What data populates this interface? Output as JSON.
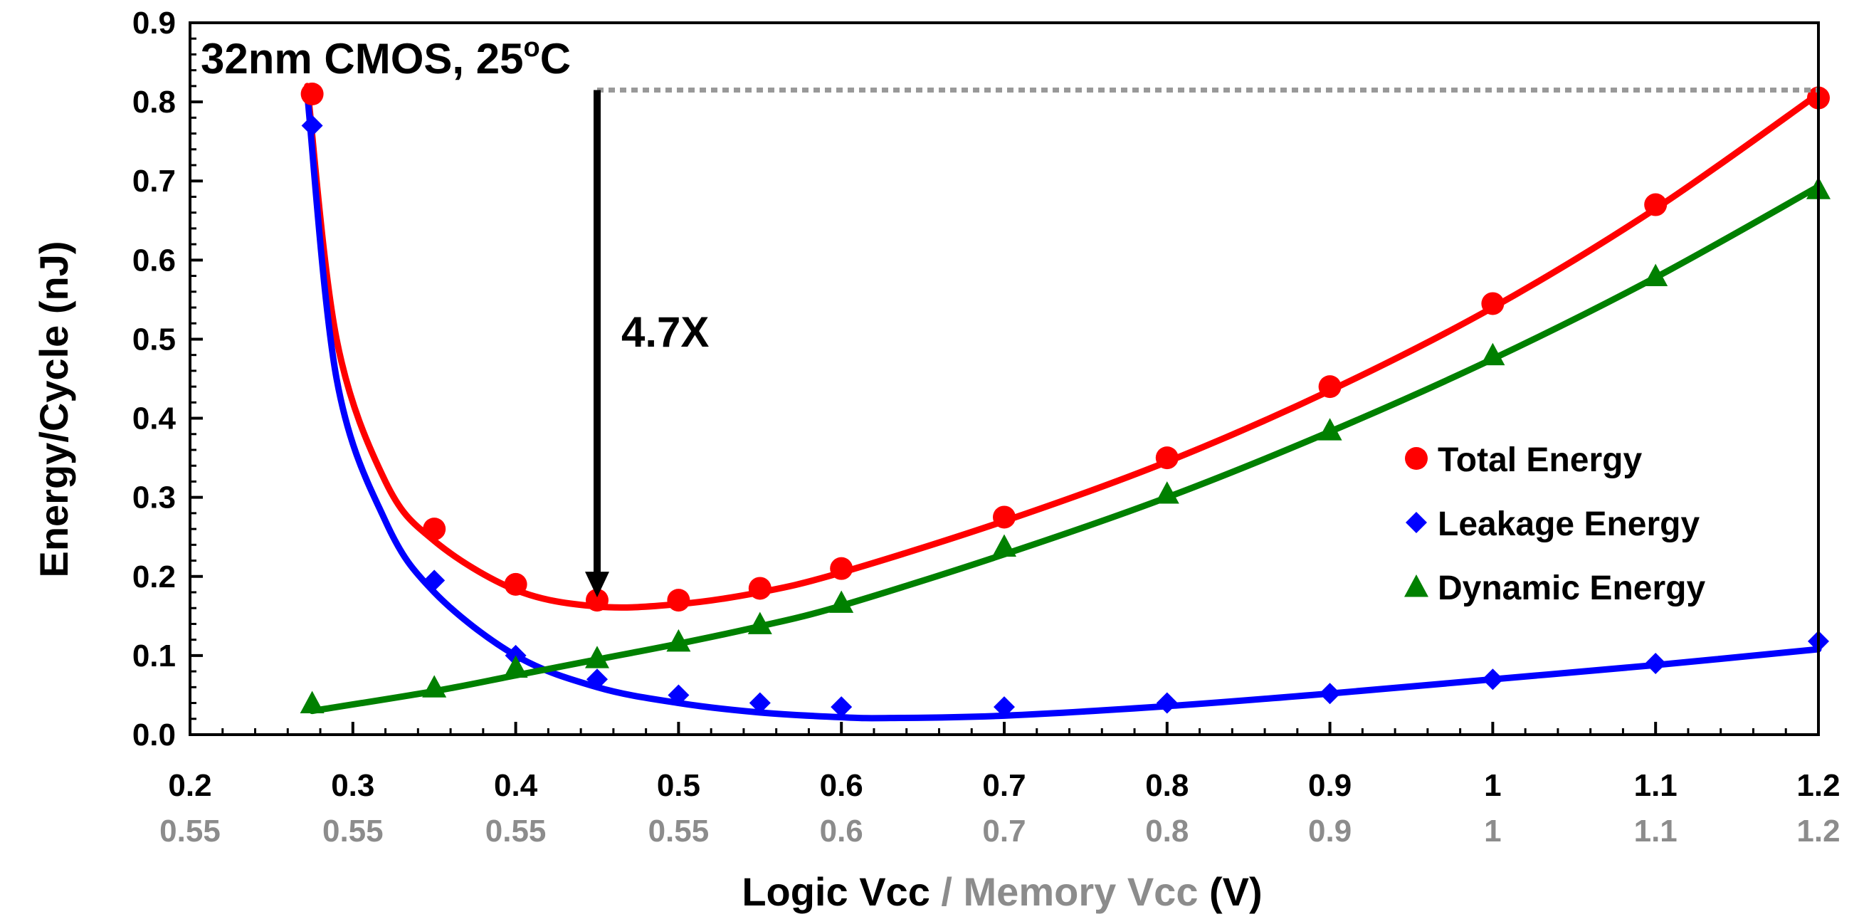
{
  "chart_data": {
    "type": "scatter",
    "title": "",
    "annotation": {
      "label_main": "32nm CMOS, 25",
      "label_sup": "o",
      "label_tail": "C",
      "ratio_label": "4.7X"
    },
    "ylabel": "Energy/Cycle (nJ)",
    "xlabel_primary": "Logic Vcc",
    "xlabel_separator": " / ",
    "xlabel_secondary": "Memory Vcc",
    "xlabel_unit": " (V)",
    "xlim": [
      0.2,
      1.2
    ],
    "ylim": [
      0.0,
      0.9
    ],
    "y_ticks": [
      "0.0",
      "0.1",
      "0.2",
      "0.3",
      "0.4",
      "0.5",
      "0.6",
      "0.7",
      "0.8",
      "0.9"
    ],
    "x_ticks_logic": [
      "0.2",
      "0.3",
      "0.4",
      "0.5",
      "0.6",
      "0.7",
      "0.8",
      "0.9",
      "1",
      "1.1",
      "1.2"
    ],
    "x_ticks_memory": [
      "0.55",
      "0.55",
      "0.55",
      "0.55",
      "0.6",
      "0.7",
      "0.8",
      "0.9",
      "1",
      "1.1",
      "1.2"
    ],
    "x_tick_values": [
      0.2,
      0.3,
      0.4,
      0.5,
      0.6,
      0.7,
      0.8,
      0.9,
      1.0,
      1.1,
      1.2
    ],
    "legend_position": "right",
    "series": [
      {
        "name": "Total Energy",
        "marker": "circle",
        "color": "#ff0000",
        "x": [
          0.275,
          0.35,
          0.4,
          0.45,
          0.5,
          0.55,
          0.6,
          0.7,
          0.8,
          0.9,
          1.0,
          1.1,
          1.2
        ],
        "y": [
          0.81,
          0.26,
          0.19,
          0.17,
          0.17,
          0.185,
          0.21,
          0.275,
          0.35,
          0.44,
          0.545,
          0.67,
          0.805
        ]
      },
      {
        "name": "Leakage Energy",
        "marker": "diamond",
        "color": "#0000ff",
        "x": [
          0.275,
          0.35,
          0.4,
          0.45,
          0.5,
          0.55,
          0.6,
          0.7,
          0.8,
          0.9,
          1.0,
          1.1,
          1.2
        ],
        "y": [
          0.77,
          0.195,
          0.1,
          0.07,
          0.05,
          0.04,
          0.035,
          0.035,
          0.04,
          0.052,
          0.07,
          0.09,
          0.118
        ]
      },
      {
        "name": "Dynamic Energy",
        "marker": "triangle",
        "color": "#008000",
        "x": [
          0.275,
          0.35,
          0.4,
          0.45,
          0.5,
          0.55,
          0.6,
          0.7,
          0.8,
          0.9,
          1.0,
          1.1,
          1.2
        ],
        "y": [
          0.04,
          0.06,
          0.085,
          0.097,
          0.118,
          0.14,
          0.167,
          0.238,
          0.305,
          0.385,
          0.48,
          0.58,
          0.69
        ]
      }
    ],
    "curves": [
      {
        "color": "#ff0000",
        "x": [
          0.272,
          0.29,
          0.32,
          0.35,
          0.4,
          0.45,
          0.5,
          0.55,
          0.6,
          0.7,
          0.8,
          0.9,
          1.0,
          1.1,
          1.2
        ],
        "y": [
          0.82,
          0.5,
          0.32,
          0.245,
          0.183,
          0.162,
          0.165,
          0.18,
          0.205,
          0.27,
          0.345,
          0.435,
          0.54,
          0.665,
          0.81
        ]
      },
      {
        "color": "#0000ff",
        "x": [
          0.272,
          0.29,
          0.32,
          0.35,
          0.4,
          0.45,
          0.5,
          0.55,
          0.6,
          0.63,
          0.7,
          0.8,
          0.9,
          1.0,
          1.1,
          1.2
        ],
        "y": [
          0.81,
          0.45,
          0.27,
          0.18,
          0.1,
          0.06,
          0.04,
          0.028,
          0.022,
          0.021,
          0.024,
          0.036,
          0.052,
          0.07,
          0.088,
          0.108
        ]
      },
      {
        "color": "#008000",
        "x": [
          0.275,
          0.35,
          0.4,
          0.45,
          0.5,
          0.55,
          0.6,
          0.7,
          0.8,
          0.9,
          1.0,
          1.1,
          1.2
        ],
        "y": [
          0.03,
          0.055,
          0.075,
          0.095,
          0.115,
          0.137,
          0.163,
          0.228,
          0.3,
          0.383,
          0.475,
          0.578,
          0.693
        ]
      }
    ],
    "reference_line": {
      "style": "dotted",
      "color": "#999999",
      "x_start": 0.45,
      "x_end": 1.2,
      "y": 0.815
    },
    "arrow": {
      "x": 0.45,
      "y_from": 0.815,
      "y_to": 0.17,
      "color": "#000000"
    }
  }
}
